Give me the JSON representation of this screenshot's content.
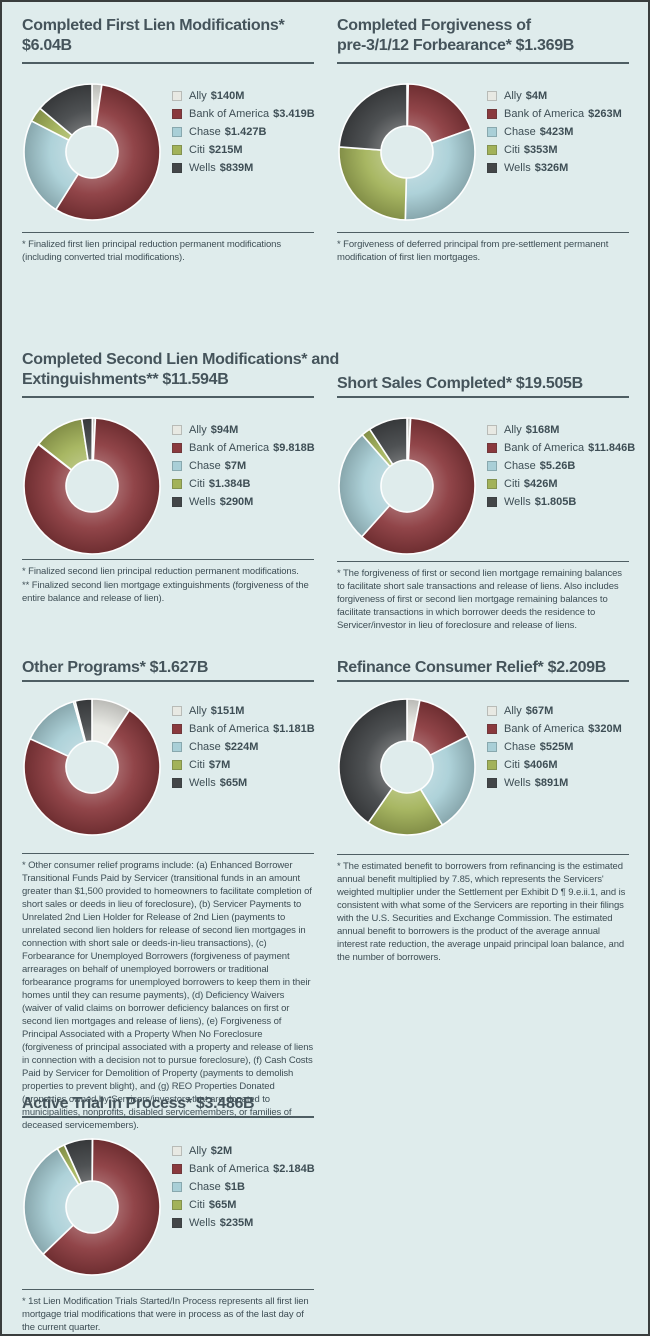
{
  "page": {
    "background_color": "#dfecec",
    "frame_color": "#3a3e3e",
    "text_color": "#3e4e55",
    "rule_color": "#4e5e63"
  },
  "palette": {
    "ally": "#e8e9e3",
    "bank_of_america": "#8a393d",
    "chase": "#a9cfd7",
    "citi": "#a2b259",
    "wells": "#434648"
  },
  "servicer_colors": [
    "#e8e9e3",
    "#8a393d",
    "#a9cfd7",
    "#a2b259",
    "#434648"
  ],
  "chart_data": [
    {
      "type": "donut",
      "title": "Completed First Lien Modifications* $6.04B",
      "title_lines": [
        "Completed First Lien Modifications*",
        "$6.04B"
      ],
      "total_label": "$6.04B",
      "categories": [
        "Ally",
        "Bank of America",
        "Chase",
        "Citi",
        "Wells"
      ],
      "values": [
        140,
        3419,
        1427,
        215,
        839
      ],
      "value_labels": [
        "$140M",
        "$3.419B",
        "$1.427B",
        "$215M",
        "$839M"
      ],
      "units": "millions USD",
      "legend_position": "right",
      "footnotes": [
        "* Finalized first lien principal reduction permanent modifications (including converted trial modifications)."
      ]
    },
    {
      "type": "donut",
      "title": "Completed Forgiveness of pre-3/1/12 Forbearance* $1.369B",
      "title_lines": [
        "Completed Forgiveness of",
        "pre-3/1/12 Forbearance* $1.369B"
      ],
      "total_label": "$1.369B",
      "categories": [
        "Ally",
        "Bank of America",
        "Chase",
        "Citi",
        "Wells"
      ],
      "values": [
        4,
        263,
        423,
        353,
        326
      ],
      "value_labels": [
        "$4M",
        "$263M",
        "$423M",
        "$353M",
        "$326M"
      ],
      "units": "millions USD",
      "legend_position": "right",
      "footnotes": [
        "* Forgiveness of deferred principal from pre-settlement permanent modification of first lien mortgages."
      ]
    },
    {
      "type": "donut",
      "title": "Completed Second Lien Modifications* and Extinguishments** $11.594B",
      "title_lines": [
        "Completed Second Lien Modifications* and",
        "Extinguishments** $11.594B"
      ],
      "total_label": "$11.594B",
      "categories": [
        "Ally",
        "Bank of America",
        "Chase",
        "Citi",
        "Wells"
      ],
      "values": [
        94,
        9818,
        7,
        1384,
        290
      ],
      "value_labels": [
        "$94M",
        "$9.818B",
        "$7M",
        "$1.384B",
        "$290M"
      ],
      "units": "millions USD",
      "legend_position": "right",
      "footnotes": [
        "* Finalized second lien principal reduction permanent modifications.",
        "** Finalized second lien mortgage extinguishments (forgiveness of the entire balance and release of lien)."
      ]
    },
    {
      "type": "donut",
      "title": "Short Sales Completed* $19.505B",
      "title_lines": [
        "Short Sales Completed* $19.505B"
      ],
      "total_label": "$19.505B",
      "categories": [
        "Ally",
        "Bank of America",
        "Chase",
        "Citi",
        "Wells"
      ],
      "values": [
        168,
        11846,
        5260,
        426,
        1805
      ],
      "value_labels": [
        "$168M",
        "$11.846B",
        "$5.26B",
        "$426M",
        "$1.805B"
      ],
      "units": "millions USD",
      "legend_position": "right",
      "footnotes": [
        "* The forgiveness of first or second lien mortgage remaining balances to facilitate short sale transactions and release of liens. Also includes forgiveness of first or second lien mortgage remaining balances to facilitate transactions in which borrower deeds the residence to Servicer/investor in lieu of foreclosure and release of liens."
      ]
    },
    {
      "type": "donut",
      "title": "Other Programs*  $1.627B",
      "title_lines": [
        "Other Programs*  $1.627B"
      ],
      "total_label": "$1.627B",
      "categories": [
        "Ally",
        "Bank of America",
        "Chase",
        "Citi",
        "Wells"
      ],
      "values": [
        151,
        1181,
        224,
        7,
        65
      ],
      "value_labels": [
        "$151M",
        "$1.181B",
        "$224M",
        "$7M",
        "$65M"
      ],
      "units": "millions USD",
      "legend_position": "right",
      "footnotes": [
        "* Other consumer relief programs include: (a) Enhanced Borrower Transitional Funds Paid by Servicer (transitional funds in an amount greater than $1,500 provided to homeowners to facilitate completion of short sales or deeds in lieu of foreclosure), (b) Servicer Payments to Unrelated 2nd Lien Holder for Release of 2nd Lien (payments to unrelated second lien holders for release of second lien mortgages in connection with short sale or deeds-in-lieu transactions), (c) Forbearance for Unemployed Borrowers (forgiveness of payment arrearages on behalf of unemployed borrowers or traditional forbearance programs for unemployed borrowers to keep them in their homes until they can resume payments), (d) Deficiency Waivers (waiver of valid claims on borrower deficiency balances on first or second lien mortgages and release of liens), (e) Forgiveness of Principal Associated with a Property When No Foreclosure (forgiveness of principal associated with a property and release of liens in connection with a decision not to pursue foreclosure), (f) Cash Costs Paid by Servicer for Demolition of Property (payments to demolish properties to prevent blight), and (g) REO Properties Donated (properties owned by Servicers/investors that are donated to municipalities, nonprofits, disabled servicemembers, or families of deceased servicemembers)."
      ]
    },
    {
      "type": "donut",
      "title": "Refinance Consumer Relief* $2.209B",
      "title_lines": [
        "Refinance Consumer Relief* $2.209B"
      ],
      "total_label": "$2.209B",
      "categories": [
        "Ally",
        "Bank of America",
        "Chase",
        "Citi",
        "Wells"
      ],
      "values": [
        67,
        320,
        525,
        406,
        891
      ],
      "value_labels": [
        "$67M",
        "$320M",
        "$525M",
        "$406M",
        "$891M"
      ],
      "units": "millions USD",
      "legend_position": "right",
      "footnotes": [
        "* The estimated benefit to borrowers from refinancing is the estimated annual benefit multiplied by 7.85, which represents the Servicers' weighted multiplier under the Settlement per Exhibit D ¶ 9.e.ii.1, and is consistent with what some of the Servicers are reporting in their filings with the U.S. Securities and Exchange Commission. The estimated annual benefit to borrowers is the product of the average annual interest rate reduction, the average unpaid principal loan balance, and the number of borrowers."
      ]
    },
    {
      "type": "donut",
      "title": "Active Trial in Process* $3.486B",
      "title_lines": [
        "Active Trial in Process* $3.486B"
      ],
      "total_label": "$3.486B",
      "categories": [
        "Ally",
        "Bank of America",
        "Chase",
        "Citi",
        "Wells"
      ],
      "values": [
        2,
        2184,
        1000,
        65,
        235
      ],
      "value_labels": [
        "$2M",
        "$2.184B",
        "$1B",
        "$65M",
        "$235M"
      ],
      "units": "millions USD",
      "legend_position": "right",
      "footnotes": [
        "* 1st Lien Modification Trials Started/In Process represents all first lien mortgage trial modifications that were in process as of the last day of the current quarter."
      ]
    }
  ]
}
